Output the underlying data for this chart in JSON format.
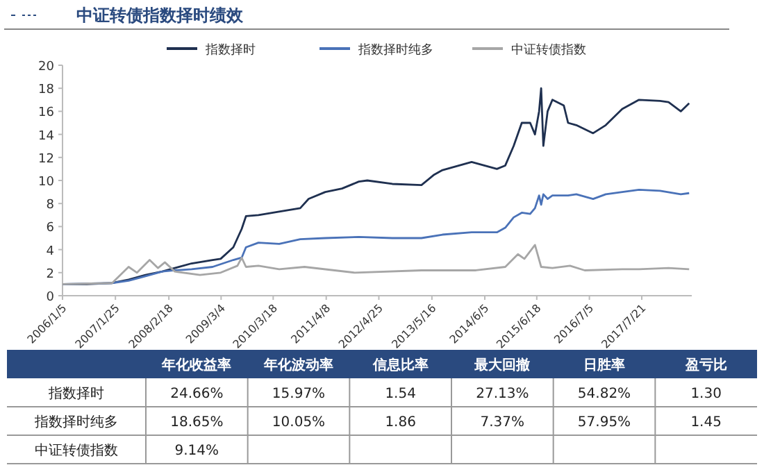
{
  "chart_data": [
    {
      "type": "line",
      "title": "中证转债指数择时绩效",
      "legend": "top",
      "grid": false,
      "xlim": [
        "2006-01-05",
        "2018-07-20"
      ],
      "xticks": [
        {
          "value": "2006-01-05",
          "label": "2006/1/5"
        },
        {
          "value": "2007-01-25",
          "label": "2007/1/25"
        },
        {
          "value": "2008-02-18",
          "label": "2008/2/18"
        },
        {
          "value": "2009-03-04",
          "label": "2009/3/4"
        },
        {
          "value": "2010-03-18",
          "label": "2010/3/18"
        },
        {
          "value": "2011-04-08",
          "label": "2011/4/8"
        },
        {
          "value": "2012-04-25",
          "label": "2012/4/25"
        },
        {
          "value": "2013-05-16",
          "label": "2013/5/16"
        },
        {
          "value": "2014-06-05",
          "label": "2014/6/5"
        },
        {
          "value": "2015-06-18",
          "label": "2015/6/18"
        },
        {
          "value": "2016-07-05",
          "label": "2016/7/5"
        },
        {
          "value": "2017-07-21",
          "label": "2017/7/21"
        }
      ],
      "ylim": [
        0,
        20
      ],
      "yticks": [
        0,
        2,
        4,
        6,
        8,
        10,
        12,
        14,
        16,
        18,
        20
      ],
      "series": [
        {
          "name": "指数择时",
          "color": "#1f3050",
          "x": [
            "2006-01-05",
            "2006-07",
            "2007-01",
            "2007-05",
            "2007-09",
            "2008-01",
            "2008-04",
            "2008-08",
            "2009-01",
            "2009-03",
            "2009-06",
            "2009-08",
            "2009-09",
            "2009-12",
            "2010-05",
            "2010-10",
            "2010-12",
            "2011-04",
            "2011-08",
            "2011-12",
            "2012-02",
            "2012-08",
            "2013-03",
            "2013-06",
            "2013-08",
            "2014-03",
            "2014-09",
            "2014-11",
            "2015-01",
            "2015-03",
            "2015-05",
            "2015-06-05",
            "2015-07-05",
            "2015-07-20",
            "2015-08-05",
            "2015-09-05",
            "2015-10-10",
            "2016-01",
            "2016-02",
            "2016-04",
            "2016-08",
            "2016-11",
            "2017-03",
            "2017-07",
            "2017-12",
            "2018-02",
            "2018-05",
            "2018-07"
          ],
          "values": [
            1.0,
            1.0,
            1.1,
            1.4,
            1.8,
            2.1,
            2.4,
            2.8,
            3.1,
            3.2,
            4.2,
            5.8,
            6.9,
            7.0,
            7.3,
            7.6,
            8.4,
            9.0,
            9.3,
            9.9,
            10.0,
            9.7,
            9.6,
            10.5,
            10.9,
            11.6,
            11.0,
            11.3,
            13.0,
            15.0,
            15.0,
            14.0,
            16.0,
            18.0,
            13.0,
            16.0,
            17.0,
            16.5,
            15.0,
            14.8,
            14.1,
            14.8,
            16.2,
            17.0,
            16.9,
            16.8,
            16.0,
            16.7
          ]
        },
        {
          "name": "指数择时纯多",
          "color": "#4a72b8",
          "x": [
            "2006-01-05",
            "2007-01",
            "2007-05",
            "2007-09",
            "2008-01",
            "2008-04",
            "2008-08",
            "2009-01",
            "2009-06",
            "2009-08",
            "2009-09",
            "2009-12",
            "2010-05",
            "2010-10",
            "2011-04",
            "2011-12",
            "2012-08",
            "2013-03",
            "2013-08",
            "2014-03",
            "2014-09",
            "2014-11",
            "2015-01",
            "2015-03",
            "2015-05",
            "2015-06-05",
            "2015-07-05",
            "2015-07-20",
            "2015-08-05",
            "2015-09-05",
            "2015-10-10",
            "2016-02",
            "2016-04",
            "2016-08",
            "2016-11",
            "2017-03",
            "2017-07",
            "2017-12",
            "2018-05",
            "2018-07"
          ],
          "values": [
            1.0,
            1.1,
            1.3,
            1.7,
            2.1,
            2.2,
            2.3,
            2.5,
            3.1,
            3.3,
            4.2,
            4.6,
            4.5,
            4.9,
            5.0,
            5.1,
            5.0,
            5.0,
            5.3,
            5.5,
            5.5,
            5.9,
            6.8,
            7.2,
            7.1,
            7.6,
            8.7,
            7.9,
            8.8,
            8.4,
            8.7,
            8.7,
            8.8,
            8.4,
            8.8,
            9.0,
            9.2,
            9.1,
            8.8,
            8.9
          ]
        },
        {
          "name": "中证转债指数",
          "color": "#a6a6a6",
          "x": [
            "2006-01-05",
            "2007-01",
            "2007-05",
            "2007-07",
            "2007-10",
            "2007-12",
            "2008-01-20",
            "2008-04",
            "2008-10",
            "2009-03",
            "2009-07",
            "2009-08",
            "2009-09",
            "2009-12",
            "2010-05",
            "2010-11",
            "2011-11",
            "2013-03",
            "2014-04",
            "2014-11",
            "2015-02",
            "2015-03-20",
            "2015-06-05",
            "2015-07-20",
            "2015-10-10",
            "2016-02-15",
            "2016-06",
            "2017-03",
            "2017-07",
            "2018-02",
            "2018-07"
          ],
          "values": [
            1.0,
            1.1,
            2.5,
            2.0,
            3.1,
            2.4,
            2.9,
            2.1,
            1.8,
            2.0,
            2.6,
            3.3,
            2.5,
            2.6,
            2.3,
            2.5,
            2.0,
            2.2,
            2.2,
            2.5,
            3.6,
            3.2,
            4.4,
            2.5,
            2.4,
            2.6,
            2.2,
            2.3,
            2.3,
            2.4,
            2.3
          ]
        }
      ]
    },
    {
      "type": "other",
      "categories": [
        null,
        "年化收益率",
        "年化波动率",
        "信息比率",
        "最大回撤",
        "日胜率",
        "盈亏比"
      ],
      "y_categories": [
        "指数择时",
        "指数择时纯多",
        "中证转债指数"
      ],
      "cell_labels": [
        [
          "24.66%",
          "15.97%",
          "1.54",
          "27.13%",
          "54.82%",
          "1.30"
        ],
        [
          "18.65%",
          "10.05%",
          "1.86",
          "7.37%",
          "57.95%",
          "1.45"
        ],
        [
          "9.14%",
          null,
          null,
          null,
          null,
          null
        ]
      ]
    }
  ]
}
